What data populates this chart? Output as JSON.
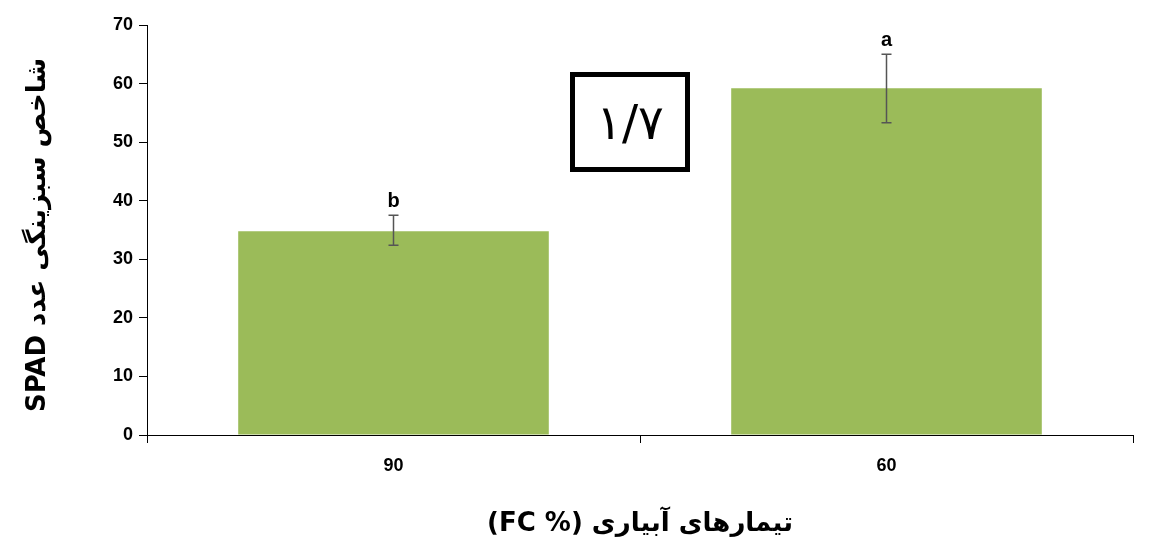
{
  "chart_data": {
    "type": "bar",
    "xlabel": "تیمارهای آبیاری (% FC)",
    "ylabel": "شاخص سبزینگی عدد SPAD",
    "categories": [
      "90",
      "60"
    ],
    "values": [
      34.8,
      59.2
    ],
    "errors": [
      [
        32.4,
        37.5
      ],
      [
        53.3,
        65.0
      ]
    ],
    "color": "#9bbb59",
    "ylim": [
      0,
      70
    ],
    "yticks": [
      0,
      10,
      20,
      30,
      40,
      50,
      60,
      70
    ],
    "grid": false,
    "legend": false,
    "annotations": [
      {
        "text": "b",
        "x": "90",
        "y": 37.5
      },
      {
        "text": "a",
        "x": "60",
        "y": 65.0
      },
      "۱/۷"
    ]
  }
}
